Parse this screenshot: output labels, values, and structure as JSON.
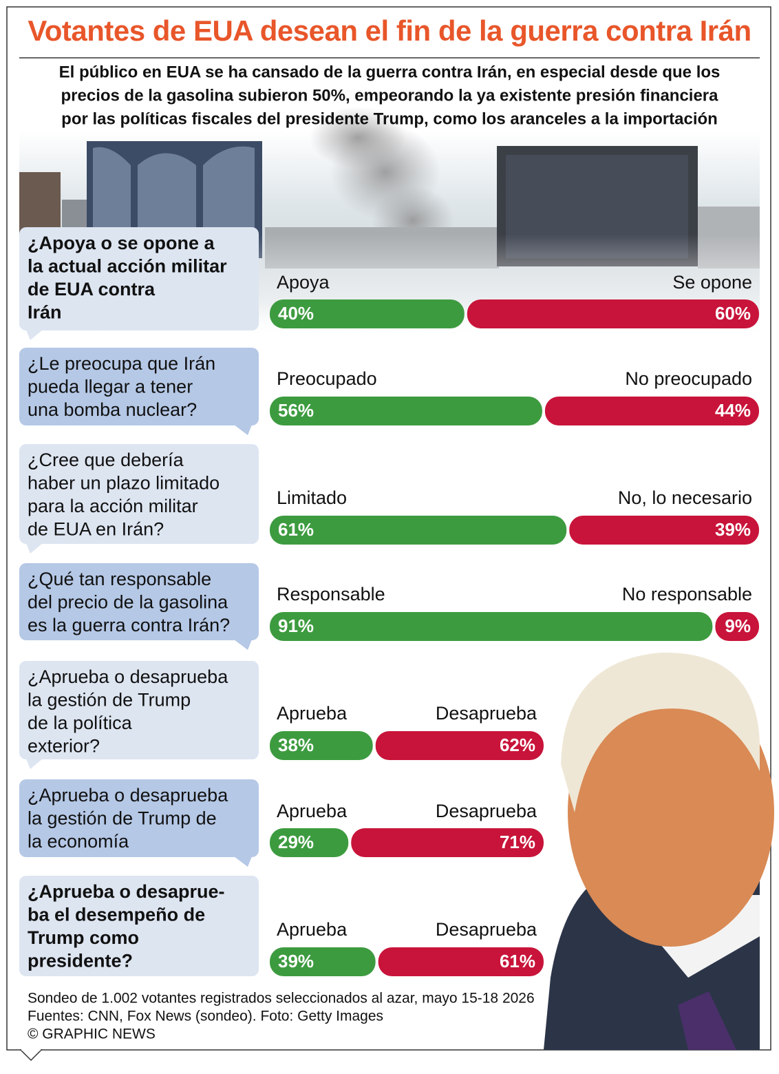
{
  "title": "Votantes de EUA desean el fin de la guerra contra Irán",
  "subtitle": [
    "El público en EUA se ha cansado de la guerra contra Irán, en especial desde que los",
    "precios de la gasolina subieron 50%, empeorando la ya existente presión financiera",
    "por las políticas fiscales del presidente Trump, como los aranceles a la importación"
  ],
  "chart_data": [
    {
      "type": "bar",
      "title": [
        "¿Apoya o se opone a",
        "la actual acción militar",
        "de EUA contra",
        "Irán"
      ],
      "series": [
        {
          "name": "Apoya",
          "color": "#3d9b3f",
          "values": [
            40
          ],
          "value_labels": [
            "40%"
          ]
        },
        {
          "name": "Se opone",
          "color": "#c8143a",
          "values": [
            60
          ],
          "value_labels": [
            "60%"
          ]
        }
      ]
    },
    {
      "type": "bar",
      "title": [
        "¿Le preocupa que Irán",
        "pueda llegar a tener",
        "una bomba nuclear?"
      ],
      "series": [
        {
          "name": "Preocupado",
          "color": "#3d9b3f",
          "values": [
            56
          ],
          "value_labels": [
            "56%"
          ]
        },
        {
          "name": "No preocupado",
          "color": "#c8143a",
          "values": [
            44
          ],
          "value_labels": [
            "44%"
          ]
        }
      ]
    },
    {
      "type": "bar",
      "title": [
        "¿Cree que debería",
        "haber un plazo limitado",
        "para la acción militar",
        "de EUA en Irán?"
      ],
      "series": [
        {
          "name": "Limitado",
          "color": "#3d9b3f",
          "values": [
            61
          ],
          "value_labels": [
            "61%"
          ]
        },
        {
          "name": "No, lo necesario",
          "color": "#c8143a",
          "values": [
            39
          ],
          "value_labels": [
            "39%"
          ]
        }
      ]
    },
    {
      "type": "bar",
      "title": [
        "¿Qué tan responsable",
        "del precio de la gasolina",
        "es la guerra contra Irán?"
      ],
      "series": [
        {
          "name": "Responsable",
          "color": "#3d9b3f",
          "values": [
            91
          ],
          "value_labels": [
            "91%"
          ]
        },
        {
          "name": "No responsable",
          "color": "#c8143a",
          "values": [
            9
          ],
          "value_labels": [
            "9%"
          ]
        }
      ]
    },
    {
      "type": "bar",
      "title": [
        "¿Aprueba o desaprueba",
        "la gestión de Trump",
        "de la política",
        "exterior?"
      ],
      "series": [
        {
          "name": "Aprueba",
          "color": "#3d9b3f",
          "values": [
            38
          ],
          "value_labels": [
            "38%"
          ]
        },
        {
          "name": "Desaprueba",
          "color": "#c8143a",
          "values": [
            62
          ],
          "value_labels": [
            "62%"
          ]
        }
      ]
    },
    {
      "type": "bar",
      "title": [
        "¿Aprueba o desaprueba",
        "la gestión de Trump de",
        "la economía"
      ],
      "series": [
        {
          "name": "Aprueba",
          "color": "#3d9b3f",
          "values": [
            29
          ],
          "value_labels": [
            "29%"
          ]
        },
        {
          "name": "Desaprueba",
          "color": "#c8143a",
          "values": [
            71
          ],
          "value_labels": [
            "71%"
          ]
        }
      ]
    },
    {
      "type": "bar",
      "title": [
        "¿Aprueba o desaprue-",
        "ba el desempeño de",
        "Trump como",
        "presidente?"
      ],
      "series": [
        {
          "name": "Aprueba",
          "color": "#3d9b3f",
          "values": [
            39
          ],
          "value_labels": [
            "39%"
          ]
        },
        {
          "name": "Desaprueba",
          "color": "#c8143a",
          "values": [
            61
          ],
          "value_labels": [
            "61%"
          ]
        }
      ]
    }
  ],
  "notes": [
    "Sondeo de 1.002 votantes registrados seleccionados al azar, mayo 15-18 2026",
    "Fuentes: CNN, Fox News (sondeo). Foto: Getty Images",
    "© GRAPHIC NEWS"
  ]
}
